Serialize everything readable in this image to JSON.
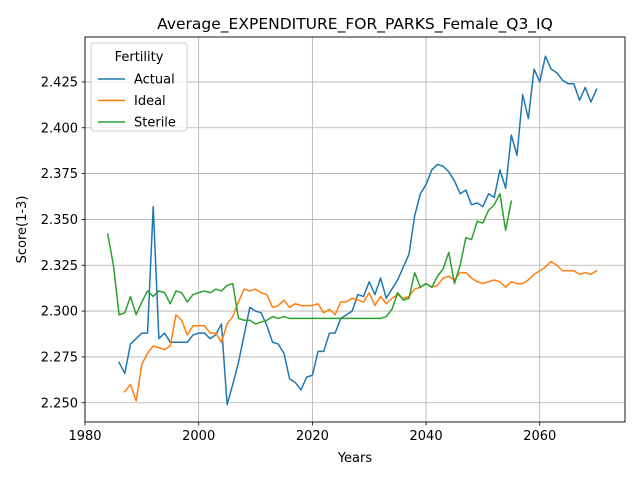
{
  "chart_data": {
    "type": "line",
    "title": "Average_EXPENDITURE_FOR_PARKS_Female_Q3_IQ",
    "xlabel": "Years",
    "ylabel": "Score(1-3)",
    "xlim": [
      1980,
      2075
    ],
    "ylim": [
      2.2395,
      2.4495
    ],
    "xticks": [
      1980,
      2000,
      2020,
      2040,
      2060
    ],
    "xtick_labels": [
      "1980",
      "2000",
      "2020",
      "2040",
      "2060"
    ],
    "yticks": [
      2.25,
      2.275,
      2.3,
      2.325,
      2.35,
      2.375,
      2.4,
      2.425
    ],
    "ytick_labels": [
      "2.250",
      "2.275",
      "2.300",
      "2.325",
      "2.350",
      "2.375",
      "2.400",
      "2.425"
    ],
    "grid": true,
    "legend": {
      "title": "Fertility",
      "placement": "top-left"
    },
    "series": [
      {
        "name": "Actual",
        "color": "#1f77b4",
        "x": [
          1986,
          1987,
          1988,
          1989,
          1990,
          1991,
          1992,
          1993,
          1994,
          1995,
          1996,
          1997,
          1998,
          1999,
          2000,
          2001,
          2002,
          2003,
          2004,
          2005,
          2006,
          2007,
          2008,
          2009,
          2010,
          2011,
          2012,
          2013,
          2014,
          2015,
          2016,
          2017,
          2018,
          2019,
          2020,
          2021,
          2022,
          2023,
          2024,
          2025,
          2026,
          2027,
          2028,
          2029,
          2030,
          2031,
          2032,
          2033,
          2034,
          2035,
          2036,
          2037,
          2038,
          2039,
          2040,
          2041,
          2042,
          2043,
          2044,
          2045,
          2046,
          2047,
          2048,
          2049,
          2050,
          2051,
          2052,
          2053,
          2054,
          2055,
          2056,
          2057,
          2058,
          2059,
          2060,
          2061,
          2062,
          2063,
          2064,
          2065,
          2066,
          2067,
          2068,
          2069,
          2070
        ],
        "values": [
          2.272,
          2.266,
          2.282,
          2.285,
          2.288,
          2.288,
          2.357,
          2.285,
          2.288,
          2.283,
          2.283,
          2.283,
          2.283,
          2.287,
          2.288,
          2.288,
          2.285,
          2.287,
          2.293,
          2.249,
          2.26,
          2.272,
          2.287,
          2.302,
          2.3,
          2.299,
          2.292,
          2.283,
          2.282,
          2.277,
          2.263,
          2.261,
          2.257,
          2.264,
          2.265,
          2.278,
          2.278,
          2.288,
          2.288,
          2.296,
          2.298,
          2.3,
          2.309,
          2.308,
          2.316,
          2.309,
          2.318,
          2.307,
          2.312,
          2.317,
          2.324,
          2.331,
          2.352,
          2.364,
          2.369,
          2.377,
          2.38,
          2.379,
          2.376,
          2.371,
          2.364,
          2.366,
          2.358,
          2.359,
          2.357,
          2.364,
          2.362,
          2.377,
          2.367,
          2.396,
          2.385,
          2.418,
          2.405,
          2.432,
          2.425,
          2.439,
          2.432,
          2.43,
          2.426,
          2.424,
          2.424,
          2.415,
          2.422,
          2.414,
          2.421
        ]
      },
      {
        "name": "Ideal",
        "color": "#ff7f0e",
        "x": [
          1987,
          1988,
          1989,
          1990,
          1991,
          1992,
          1993,
          1994,
          1995,
          1996,
          1997,
          1998,
          1999,
          2000,
          2001,
          2002,
          2003,
          2004,
          2005,
          2006,
          2007,
          2008,
          2009,
          2010,
          2011,
          2012,
          2013,
          2014,
          2015,
          2016,
          2017,
          2018,
          2019,
          2020,
          2021,
          2022,
          2023,
          2024,
          2025,
          2026,
          2027,
          2028,
          2029,
          2030,
          2031,
          2032,
          2033,
          2034,
          2035,
          2036,
          2037,
          2038,
          2039,
          2040,
          2041,
          2042,
          2043,
          2044,
          2045,
          2046,
          2047,
          2048,
          2049,
          2050,
          2051,
          2052,
          2053,
          2054,
          2055,
          2056,
          2057,
          2058,
          2059,
          2060,
          2061,
          2062,
          2063,
          2064,
          2065,
          2066,
          2067,
          2068,
          2069,
          2070
        ],
        "values": [
          2.256,
          2.26,
          2.251,
          2.271,
          2.277,
          2.281,
          2.28,
          2.279,
          2.281,
          2.298,
          2.295,
          2.287,
          2.292,
          2.292,
          2.292,
          2.288,
          2.288,
          2.283,
          2.293,
          2.297,
          2.305,
          2.312,
          2.311,
          2.312,
          2.31,
          2.309,
          2.302,
          2.303,
          2.306,
          2.302,
          2.304,
          2.303,
          2.303,
          2.303,
          2.304,
          2.299,
          2.301,
          2.298,
          2.305,
          2.305,
          2.307,
          2.306,
          2.305,
          2.31,
          2.303,
          2.308,
          2.304,
          2.307,
          2.309,
          2.307,
          2.308,
          2.312,
          2.313,
          2.315,
          2.313,
          2.314,
          2.318,
          2.319,
          2.317,
          2.321,
          2.321,
          2.318,
          2.316,
          2.315,
          2.316,
          2.317,
          2.316,
          2.313,
          2.316,
          2.315,
          2.315,
          2.317,
          2.32,
          2.322,
          2.324,
          2.327,
          2.325,
          2.322,
          2.322,
          2.322,
          2.32,
          2.321,
          2.32,
          2.322
        ]
      },
      {
        "name": "Sterile",
        "color": "#2ca02c",
        "x": [
          1984,
          1985,
          1986,
          1987,
          1988,
          1989,
          1990,
          1991,
          1992,
          1993,
          1994,
          1995,
          1996,
          1997,
          1998,
          1999,
          2000,
          2001,
          2002,
          2003,
          2004,
          2005,
          2006,
          2007,
          2008,
          2009,
          2010,
          2011,
          2012,
          2013,
          2014,
          2015,
          2016,
          2017,
          2018,
          2019,
          2020,
          2021,
          2022,
          2023,
          2024,
          2025,
          2026,
          2027,
          2028,
          2029,
          2030,
          2031,
          2032,
          2033,
          2034,
          2035,
          2036,
          2037,
          2038,
          2039,
          2040,
          2041,
          2042,
          2043,
          2044,
          2045,
          2046,
          2047,
          2048,
          2049,
          2050,
          2051,
          2052,
          2053,
          2054,
          2055
        ],
        "values": [
          2.342,
          2.325,
          2.298,
          2.299,
          2.308,
          2.298,
          2.305,
          2.311,
          2.308,
          2.311,
          2.31,
          2.304,
          2.311,
          2.31,
          2.305,
          2.309,
          2.31,
          2.311,
          2.31,
          2.312,
          2.311,
          2.314,
          2.315,
          2.296,
          2.295,
          2.295,
          2.293,
          2.294,
          2.295,
          2.297,
          2.296,
          2.297,
          2.296,
          2.296,
          2.296,
          2.296,
          2.296,
          2.296,
          2.296,
          2.296,
          2.296,
          2.296,
          2.296,
          2.296,
          2.296,
          2.296,
          2.296,
          2.296,
          2.296,
          2.297,
          2.301,
          2.31,
          2.306,
          2.307,
          2.321,
          2.313,
          2.315,
          2.313,
          2.319,
          2.323,
          2.332,
          2.315,
          2.325,
          2.34,
          2.339,
          2.349,
          2.348,
          2.355,
          2.358,
          2.364,
          2.344,
          2.36
        ]
      }
    ]
  }
}
